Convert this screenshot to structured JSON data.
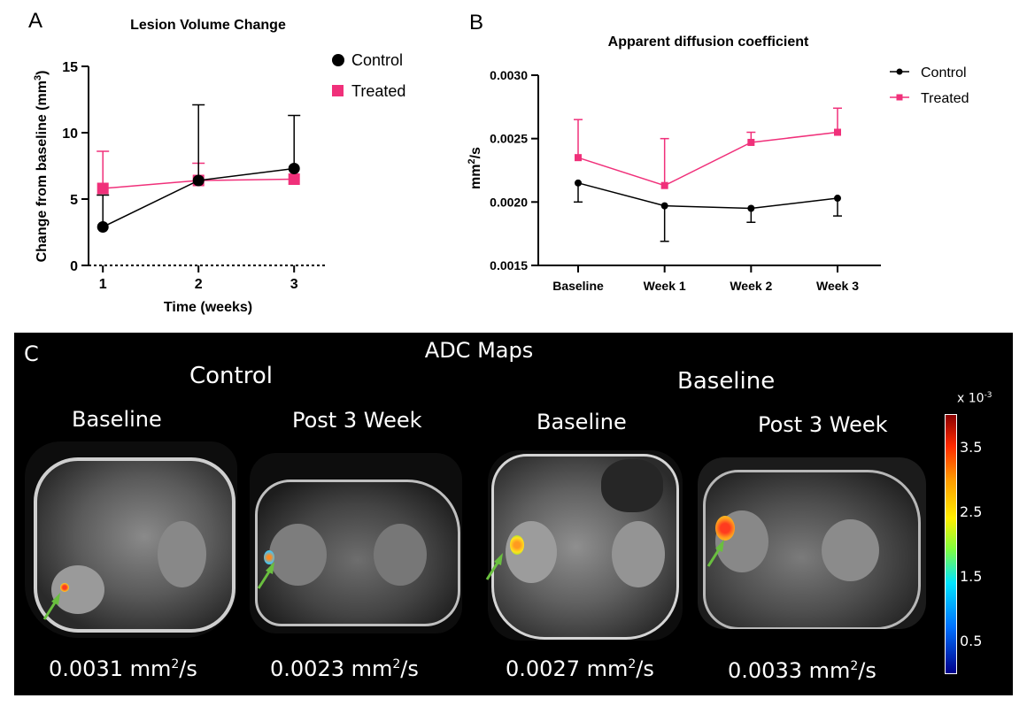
{
  "panels": {
    "a": "A",
    "b": "B",
    "c": "C"
  },
  "chart_data": [
    {
      "type": "line",
      "title": "Lesion Volume Change",
      "xlabel": "Time (weeks)",
      "ylabel_main": "Change from baseline (mm",
      "ylabel_sup": "3",
      "ylabel_end": ")",
      "categories": [
        "1",
        "2",
        "3"
      ],
      "x": [
        1,
        2,
        3
      ],
      "xlim": [
        0.85,
        3.35
      ],
      "ylim": [
        0,
        15
      ],
      "yticks": [
        "0",
        "5",
        "10",
        "15"
      ],
      "ytick_values": [
        0,
        5,
        10,
        15
      ],
      "series": [
        {
          "name": "Control",
          "color": "#000000",
          "marker": "circle",
          "values": [
            2.9,
            6.4,
            7.3
          ],
          "err_up": [
            2.4,
            5.7,
            4.0
          ],
          "err_down": [
            0,
            0,
            0
          ]
        },
        {
          "name": "Treated",
          "color": "#f0307a",
          "marker": "square",
          "values": [
            5.8,
            6.4,
            6.5
          ],
          "err_up": [
            2.8,
            1.3,
            0
          ],
          "err_down": [
            0,
            0,
            0
          ]
        }
      ]
    },
    {
      "type": "line",
      "title": "Apparent diffusion coefficient",
      "xlabel": "",
      "ylabel_main": "mm",
      "ylabel_sup": "2",
      "ylabel_end": "/s",
      "categories": [
        "Baseline",
        "Week 1",
        "Week 2",
        "Week 3"
      ],
      "ylim": [
        0.0015,
        0.003
      ],
      "yticks": [
        "0.0015",
        "0.0020",
        "0.0025",
        "0.0030"
      ],
      "ytick_values": [
        0.0015,
        0.002,
        0.0025,
        0.003
      ],
      "series": [
        {
          "name": "Control",
          "color": "#000000",
          "marker": "circle",
          "values": [
            0.00215,
            0.00197,
            0.00195,
            0.00203
          ],
          "err_up": [
            0,
            0,
            0,
            0
          ],
          "err_down": [
            0.00015,
            0.00028,
            0.00011,
            0.00014
          ]
        },
        {
          "name": "Treated",
          "color": "#f0307a",
          "marker": "square",
          "values": [
            0.00235,
            0.00213,
            0.00247,
            0.00255
          ],
          "err_up": [
            0.0003,
            0.00037,
            8e-05,
            0.00019
          ],
          "err_down": [
            0,
            0,
            0,
            0
          ]
        }
      ]
    }
  ],
  "adc": {
    "title": "ADC Maps",
    "group_left": "Control",
    "group_right": "Baseline",
    "images": [
      {
        "label": "Baseline",
        "value": "0.0031 mm",
        "sup": "2",
        "unit_end": "/s"
      },
      {
        "label": "Post 3 Week",
        "value": "0.0023 mm",
        "sup": "2",
        "unit_end": "/s"
      },
      {
        "label": "Baseline",
        "value": "0.0027 mm",
        "sup": "2",
        "unit_end": "/s"
      },
      {
        "label": "Post 3 Week",
        "value": "0.0033 mm",
        "sup": "2",
        "unit_end": "/s"
      }
    ],
    "colorbar": {
      "exponent_prefix": "x 10",
      "exponent_sup": "-3",
      "ticks": [
        "3.5",
        "2.5",
        "1.5",
        "0.5"
      ],
      "tick_values": [
        3.5,
        2.5,
        1.5,
        0.5
      ],
      "range": [
        0,
        4
      ]
    }
  }
}
